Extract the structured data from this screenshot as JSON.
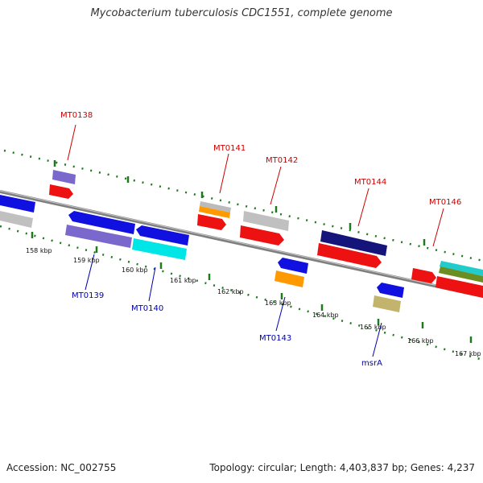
{
  "title": "Mycobacterium tuberculosis CDC1551, complete genome",
  "accession_text": "Accession: NC_002755",
  "stats_text": "Topology: circular; Length: 4,403,837 bp; Genes: 4,237",
  "colors": {
    "backbone": "#7f7f7f",
    "ticks": "#1f7a1f",
    "forward_label": "#cc0000",
    "reverse_label": "#0000b3"
  },
  "scale_labels": [
    "158 kbp",
    "159 kbp",
    "160 kbp",
    "161 kbp",
    "162 kbp",
    "163 kbp",
    "164 kbp",
    "165 kbp",
    "166 kbp",
    "167 kbp"
  ],
  "forward_labels": [
    {
      "name": "MT0138",
      "color": "#cc0000"
    },
    {
      "name": "MT0141",
      "color": "#cc0000"
    },
    {
      "name": "MT0142",
      "color": "#cc0000"
    },
    {
      "name": "MT0144",
      "color": "#cc0000"
    },
    {
      "name": "MT0146",
      "color": "#cc0000"
    }
  ],
  "reverse_labels": [
    {
      "name": "MT0139",
      "color": "#0000b3"
    },
    {
      "name": "MT0140",
      "color": "#0000b3"
    },
    {
      "name": "MT0143",
      "color": "#0000b3"
    },
    {
      "name": "msrA",
      "color": "#0000b3"
    }
  ]
}
